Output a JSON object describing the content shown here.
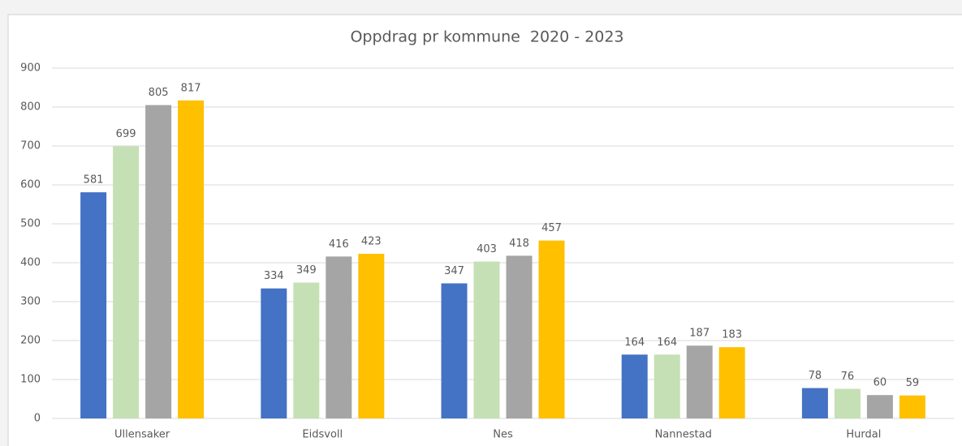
{
  "chart_data": {
    "type": "bar",
    "title": "Oppdrag pr kommune  2020 - 2023",
    "categories": [
      "Ullensaker",
      "Eidsvoll",
      "Nes",
      "Nannestad",
      "Hurdal"
    ],
    "series": [
      {
        "color": "#4472c4",
        "values": [
          581,
          334,
          347,
          164,
          78
        ]
      },
      {
        "color": "#c5e0b4",
        "values": [
          699,
          349,
          403,
          164,
          76
        ]
      },
      {
        "color": "#a5a5a5",
        "values": [
          805,
          416,
          418,
          187,
          60
        ]
      },
      {
        "color": "#ffc000",
        "values": [
          817,
          423,
          457,
          183,
          59
        ]
      }
    ],
    "ylim": [
      0,
      900
    ],
    "yticks": [
      0,
      100,
      200,
      300,
      400,
      500,
      600,
      700,
      800,
      900
    ],
    "grid": true
  }
}
